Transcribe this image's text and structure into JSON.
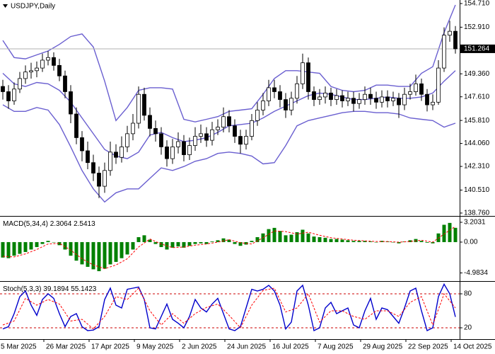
{
  "chart_data": [
    {
      "type": "candlestick",
      "title": "USDJPY,Daily",
      "xlim": [
        -0.5,
        80.75
      ],
      "ylim": [
        138.54,
        154.98
      ],
      "yticks": [
        {
          "value": 154.71,
          "label": "154.710"
        },
        {
          "value": 152.91,
          "label": "152.910"
        },
        {
          "value": 151.16,
          "label": "151.160"
        },
        {
          "value": 149.36,
          "label": "149.360"
        },
        {
          "value": 147.61,
          "label": "147.610"
        },
        {
          "value": 145.81,
          "label": "145.810"
        },
        {
          "value": 144.06,
          "label": "144.060"
        },
        {
          "value": 142.31,
          "label": "142.310"
        },
        {
          "value": 140.51,
          "label": "140.510"
        },
        {
          "value": 138.76,
          "label": "138.760"
        }
      ],
      "color_up": "#ffffff",
      "color_down": "#000000",
      "open": [
        148.4,
        148.0,
        147.3,
        148.2,
        149.0,
        149.5,
        149.6,
        149.8,
        150.4,
        150.6,
        150.0,
        149.2,
        148.0,
        146.3,
        144.5,
        143.5,
        142.6,
        141.8,
        140.8,
        142.0,
        143.4,
        143.0,
        143.8,
        144.8,
        145.6,
        147.8,
        146.2,
        145.2,
        144.8,
        143.8,
        142.9,
        143.8,
        144.2,
        143.2,
        143.9,
        144.6,
        144.8,
        144.3,
        145.1,
        145.3,
        146.1,
        145.4,
        144.6,
        144.0,
        144.6,
        145.8,
        146.6,
        147.3,
        148.3,
        148.0,
        147.4,
        146.6,
        147.5,
        148.6,
        150.2,
        148.0,
        147.4,
        147.6,
        147.9,
        147.4,
        147.7,
        147.3,
        147.5,
        147.1,
        147.4,
        147.8,
        147.5,
        147.2,
        147.6,
        147.3,
        147.5,
        147.0,
        147.8,
        148.0,
        148.6,
        147.8,
        147.0,
        147.2,
        149.8,
        152.3,
        152.6
      ],
      "high": [
        148.9,
        148.5,
        148.7,
        149.5,
        150.0,
        150.2,
        150.3,
        150.9,
        151.1,
        151.0,
        150.5,
        149.6,
        148.5,
        146.8,
        145.0,
        144.2,
        143.2,
        142.3,
        142.6,
        144.2,
        144.0,
        144.6,
        145.4,
        146.3,
        148.4,
        148.3,
        146.8,
        145.8,
        145.3,
        144.3,
        144.4,
        144.9,
        144.7,
        144.5,
        145.3,
        145.5,
        145.3,
        145.7,
        145.9,
        146.8,
        146.6,
        145.9,
        145.1,
        145.1,
        146.3,
        147.2,
        147.9,
        148.9,
        148.9,
        148.5,
        147.9,
        148.0,
        149.2,
        150.9,
        150.6,
        148.4,
        148.2,
        148.4,
        148.3,
        148.2,
        148.1,
        148.0,
        148.0,
        147.9,
        148.4,
        148.3,
        148.0,
        148.1,
        148.1,
        148.0,
        147.9,
        148.3,
        148.6,
        149.3,
        149.0,
        148.2,
        147.8,
        150.4,
        152.9,
        153.4,
        153.0
      ],
      "low": [
        147.4,
        146.7,
        147.0,
        147.9,
        148.6,
        149.0,
        149.1,
        149.5,
        150.0,
        149.6,
        148.8,
        147.5,
        145.6,
        144.0,
        142.7,
        142.1,
        141.2,
        139.9,
        140.3,
        141.6,
        142.5,
        142.6,
        143.4,
        144.3,
        145.2,
        145.8,
        144.6,
        144.2,
        143.2,
        142.3,
        142.5,
        143.3,
        142.7,
        142.8,
        143.5,
        144.1,
        143.8,
        143.9,
        144.7,
        144.9,
        144.9,
        144.1,
        143.3,
        143.6,
        144.3,
        145.4,
        146.2,
        146.9,
        147.5,
        146.8,
        146.0,
        146.2,
        147.1,
        148.2,
        147.4,
        146.9,
        147.0,
        147.1,
        146.9,
        147.0,
        146.8,
        146.9,
        146.5,
        146.7,
        147.0,
        147.0,
        146.7,
        146.8,
        146.8,
        146.9,
        146.0,
        146.6,
        147.4,
        147.7,
        147.3,
        146.5,
        146.6,
        147.0,
        149.5,
        151.8,
        150.9
      ],
      "close": [
        148.0,
        147.3,
        148.2,
        149.0,
        149.5,
        149.6,
        149.8,
        150.4,
        150.6,
        150.0,
        149.2,
        148.0,
        146.3,
        144.5,
        143.5,
        142.6,
        141.8,
        140.8,
        142.0,
        143.4,
        143.0,
        143.8,
        144.8,
        145.6,
        147.8,
        146.2,
        145.2,
        144.8,
        143.8,
        142.9,
        143.8,
        144.2,
        143.2,
        143.9,
        144.6,
        144.8,
        144.3,
        145.1,
        145.3,
        146.1,
        145.4,
        144.6,
        144.0,
        144.6,
        145.8,
        146.6,
        147.3,
        148.3,
        148.0,
        147.4,
        146.6,
        147.5,
        148.6,
        150.2,
        148.0,
        147.4,
        147.6,
        147.9,
        147.4,
        147.7,
        147.3,
        147.5,
        147.1,
        147.4,
        147.8,
        147.5,
        147.2,
        147.6,
        147.3,
        147.5,
        147.0,
        147.8,
        148.0,
        148.6,
        147.8,
        147.0,
        147.2,
        149.8,
        152.3,
        152.6,
        151.264
      ],
      "series": [
        {
          "color": "#6a5fd0",
          "x": [
            0,
            2,
            4,
            6,
            8,
            10,
            12,
            14,
            16,
            18,
            20,
            22,
            24,
            26,
            28,
            30,
            32,
            34,
            36,
            38,
            40,
            42,
            44,
            46,
            48,
            50,
            52,
            54,
            56,
            58,
            60,
            62,
            64,
            66,
            68,
            70,
            72,
            74,
            76,
            78,
            80
          ],
          "values": [
            151.9,
            150.6,
            150.5,
            150.8,
            151.1,
            151.6,
            152.2,
            152.4,
            151.4,
            148.8,
            145.8,
            146.8,
            148.1,
            148.3,
            148.3,
            148.2,
            145.9,
            145.7,
            145.9,
            146.1,
            146.5,
            146.6,
            146.7,
            147.8,
            149.0,
            149.6,
            149.6,
            149.5,
            149.4,
            148.4,
            148.1,
            148.0,
            148.1,
            148.5,
            148.5,
            148.4,
            148.4,
            149.4,
            149.9,
            152.5,
            154.6
          ]
        },
        {
          "color": "#6a5fd0",
          "x": [
            0,
            2,
            4,
            6,
            8,
            10,
            12,
            14,
            16,
            18,
            20,
            22,
            24,
            26,
            28,
            30,
            32,
            34,
            36,
            38,
            40,
            42,
            44,
            46,
            48,
            50,
            52,
            54,
            56,
            58,
            60,
            62,
            64,
            66,
            68,
            70,
            72,
            74,
            76,
            78,
            80
          ],
          "values": [
            149.4,
            148.6,
            148.4,
            148.7,
            148.6,
            148.1,
            147.2,
            146.0,
            144.8,
            143.6,
            143.1,
            142.9,
            143.4,
            144.7,
            144.9,
            144.5,
            144.2,
            144.3,
            144.5,
            144.9,
            145.4,
            145.5,
            145.6,
            146.0,
            146.5,
            146.9,
            147.3,
            147.7,
            147.9,
            147.8,
            147.6,
            147.4,
            147.4,
            147.5,
            147.6,
            147.5,
            147.5,
            147.6,
            147.9,
            148.8,
            149.6
          ]
        },
        {
          "color": "#6a5fd0",
          "x": [
            0,
            2,
            4,
            6,
            8,
            10,
            12,
            14,
            16,
            18,
            20,
            22,
            24,
            26,
            28,
            30,
            32,
            34,
            36,
            38,
            40,
            42,
            44,
            46,
            48,
            50,
            52,
            54,
            56,
            58,
            60,
            62,
            64,
            66,
            68,
            70,
            72,
            74,
            76,
            78,
            80
          ],
          "values": [
            147.0,
            146.5,
            146.5,
            146.8,
            146.6,
            145.5,
            143.8,
            142.0,
            140.6,
            139.6,
            140.3,
            140.6,
            140.6,
            141.4,
            142.2,
            142.0,
            142.3,
            142.7,
            142.9,
            143.3,
            143.4,
            143.3,
            143.1,
            142.5,
            142.6,
            143.9,
            145.4,
            145.8,
            146.0,
            146.2,
            146.4,
            146.5,
            146.5,
            146.4,
            146.4,
            146.3,
            146.0,
            145.9,
            145.8,
            145.3,
            145.6
          ]
        }
      ]
    },
    {
      "type": "bar",
      "title": "MACD(5,34,4)",
      "xlim": [
        -0.5,
        80.75
      ],
      "ylim": [
        -6.3,
        4.0
      ],
      "yticks": [
        3.2031,
        {
          "value": 0,
          "label": "0.00"
        },
        -4.9834
      ],
      "color": "#008000",
      "values": [
        -2.5,
        -2.6,
        -2.2,
        -1.9,
        -1.6,
        -1.2,
        -0.8,
        -0.3,
        0.2,
        0.0,
        -0.5,
        -1.2,
        -2.2,
        -3.0,
        -3.6,
        -4.0,
        -4.4,
        -4.7,
        -4.3,
        -3.6,
        -3.2,
        -2.6,
        -2.0,
        -1.2,
        0.8,
        1.1,
        0.4,
        -0.3,
        -0.8,
        -1.2,
        -0.9,
        -0.7,
        -0.9,
        -0.6,
        -0.3,
        -0.2,
        -0.3,
        0.1,
        0.3,
        0.6,
        0.4,
        -0.3,
        -0.6,
        -0.4,
        0.2,
        0.8,
        1.4,
        2.1,
        2.3,
        1.8,
        1.1,
        1.2,
        1.6,
        2.0,
        1.4,
        0.9,
        0.8,
        0.7,
        0.5,
        0.5,
        0.4,
        0.3,
        0.2,
        0.2,
        0.2,
        0.1,
        0.0,
        0.2,
        0.1,
        0.0,
        -0.2,
        0.1,
        0.3,
        0.5,
        0.2,
        -0.1,
        -0.2,
        1.4,
        2.8,
        3.1,
        2.3064
      ],
      "series": [
        {
          "color": "#ff0000",
          "dashed": true,
          "x": [
            0,
            2,
            4,
            6,
            8,
            10,
            12,
            14,
            16,
            18,
            20,
            22,
            24,
            26,
            28,
            30,
            32,
            34,
            36,
            38,
            40,
            42,
            44,
            46,
            48,
            50,
            52,
            54,
            56,
            58,
            60,
            62,
            64,
            66,
            68,
            70,
            72,
            74,
            76,
            78,
            80
          ],
          "values": [
            -2.3,
            -2.4,
            -1.9,
            -1.2,
            -0.3,
            -0.2,
            -1.3,
            -2.7,
            -3.7,
            -4.3,
            -3.7,
            -2.7,
            -0.8,
            0.5,
            -0.3,
            -0.9,
            -0.8,
            -0.5,
            -0.3,
            0.0,
            0.4,
            -0.1,
            -0.3,
            0.7,
            1.8,
            1.7,
            1.3,
            1.6,
            1.1,
            0.7,
            0.5,
            0.3,
            0.2,
            0.1,
            0.1,
            0.0,
            0.1,
            0.3,
            0.0,
            1.3,
            2.5413
          ]
        }
      ]
    },
    {
      "type": "line",
      "title": "Stoch(5,3,3)",
      "xlim": [
        -0.5,
        80.75
      ],
      "ylim": [
        0,
        100
      ],
      "yticks": [
        80,
        20
      ],
      "level_color": "#cc0000",
      "xticks": [
        {
          "value": -0.75,
          "label": "5 Mar 2025"
        },
        {
          "value": 7.25,
          "label": "26 Mar 2025"
        },
        {
          "value": 15.25,
          "label": "17 Apr 2025"
        },
        {
          "value": 23.25,
          "label": "9 May 2025"
        },
        {
          "value": 31.25,
          "label": "2 Jun 2025"
        },
        {
          "value": 39.25,
          "label": "24 Jun 2025"
        },
        {
          "value": 47.25,
          "label": "16 Jul 2025"
        },
        {
          "value": 55.25,
          "label": "7 Aug 2025"
        },
        {
          "value": 63.25,
          "label": "29 Aug 2025"
        },
        {
          "value": 71.25,
          "label": "22 Sep 2025"
        },
        {
          "value": 79.25,
          "label": "14 Oct 2025"
        }
      ],
      "series": [
        {
          "color": "#0000cc",
          "values": [
            18,
            22,
            45,
            75,
            85,
            60,
            42,
            70,
            80,
            72,
            45,
            22,
            40,
            45,
            22,
            15,
            16,
            22,
            70,
            90,
            60,
            55,
            88,
            90,
            92,
            70,
            20,
            18,
            40,
            62,
            35,
            28,
            20,
            40,
            70,
            55,
            48,
            62,
            72,
            45,
            18,
            15,
            22,
            55,
            88,
            85,
            88,
            95,
            85,
            60,
            18,
            30,
            85,
            95,
            60,
            15,
            20,
            55,
            65,
            45,
            50,
            55,
            25,
            20,
            50,
            72,
            35,
            55,
            52,
            40,
            28,
            55,
            85,
            90,
            50,
            15,
            20,
            75,
            97,
            80,
            39.1894
          ]
        },
        {
          "color": "#ff0000",
          "dashed": true,
          "x": [
            0,
            2,
            4,
            6,
            8,
            10,
            12,
            14,
            16,
            18,
            20,
            22,
            24,
            26,
            28,
            30,
            32,
            34,
            36,
            38,
            40,
            42,
            44,
            46,
            48,
            50,
            52,
            54,
            56,
            58,
            60,
            62,
            64,
            66,
            68,
            70,
            72,
            74,
            76,
            78,
            80
          ],
          "values": [
            25,
            32,
            72,
            60,
            70,
            62,
            32,
            35,
            18,
            40,
            75,
            70,
            90,
            50,
            25,
            45,
            28,
            45,
            56,
            62,
            42,
            20,
            60,
            86,
            90,
            48,
            55,
            80,
            30,
            50,
            50,
            40,
            35,
            50,
            50,
            40,
            65,
            75,
            25,
            80,
            55.1423
          ]
        }
      ]
    }
  ]
}
